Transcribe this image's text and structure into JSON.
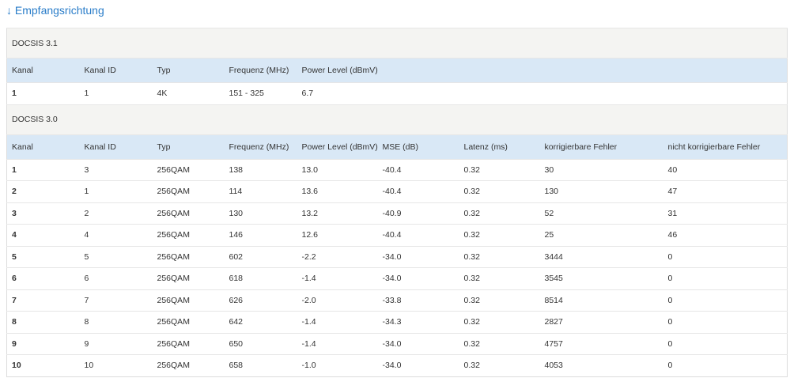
{
  "title": "↓ Empfangsrichtung",
  "sections": [
    {
      "name": "DOCSIS 3.1",
      "columns": [
        "Kanal",
        "Kanal ID",
        "Typ",
        "Frequenz (MHz)",
        "Power Level (dBmV)"
      ],
      "rows": [
        [
          "1",
          "1",
          "4K",
          "151 - 325",
          "6.7"
        ]
      ]
    },
    {
      "name": "DOCSIS 3.0",
      "columns": [
        "Kanal",
        "Kanal ID",
        "Typ",
        "Frequenz (MHz)",
        "Power Level (dBmV)",
        "MSE (dB)",
        "Latenz (ms)",
        "korrigierbare Fehler",
        "nicht korrigierbare Fehler"
      ],
      "rows": [
        [
          "1",
          "3",
          "256QAM",
          "138",
          "13.0",
          "-40.4",
          "0.32",
          "30",
          "40"
        ],
        [
          "2",
          "1",
          "256QAM",
          "114",
          "13.6",
          "-40.4",
          "0.32",
          "130",
          "47"
        ],
        [
          "3",
          "2",
          "256QAM",
          "130",
          "13.2",
          "-40.9",
          "0.32",
          "52",
          "31"
        ],
        [
          "4",
          "4",
          "256QAM",
          "146",
          "12.6",
          "-40.4",
          "0.32",
          "25",
          "46"
        ],
        [
          "5",
          "5",
          "256QAM",
          "602",
          "-2.2",
          "-34.0",
          "0.32",
          "3444",
          "0"
        ],
        [
          "6",
          "6",
          "256QAM",
          "618",
          "-1.4",
          "-34.0",
          "0.32",
          "3545",
          "0"
        ],
        [
          "7",
          "7",
          "256QAM",
          "626",
          "-2.0",
          "-33.8",
          "0.32",
          "8514",
          "0"
        ],
        [
          "8",
          "8",
          "256QAM",
          "642",
          "-1.4",
          "-34.3",
          "0.32",
          "2827",
          "0"
        ],
        [
          "9",
          "9",
          "256QAM",
          "650",
          "-1.4",
          "-34.0",
          "0.32",
          "4757",
          "0"
        ],
        [
          "10",
          "10",
          "256QAM",
          "658",
          "-1.0",
          "-34.0",
          "0.32",
          "4053",
          "0"
        ]
      ]
    }
  ]
}
